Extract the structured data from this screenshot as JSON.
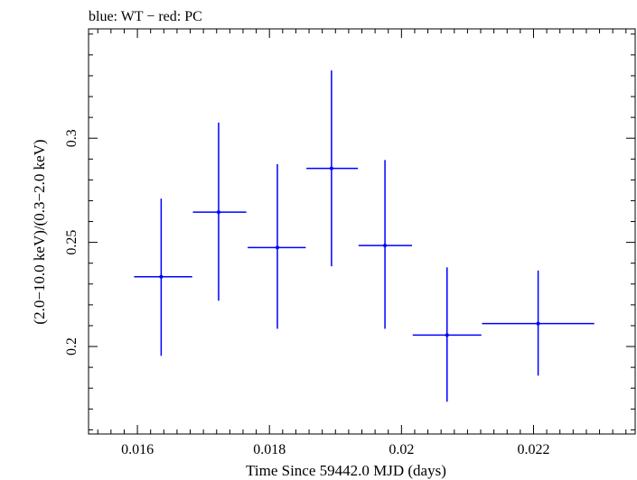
{
  "chart_data": {
    "type": "scatter",
    "title": "blue: WT − red: PC",
    "xlabel": "Time Since 59442.0 MJD (days)",
    "ylabel": "(2.0−10.0 keV)/(0.3−2.0 keV)",
    "xlim": [
      0.01526,
      0.02354
    ],
    "ylim": [
      0.158,
      0.3525
    ],
    "xticks": [
      0.016,
      0.018,
      0.02,
      0.022
    ],
    "xtick_labels": [
      "0.016",
      "0.018",
      "0.02",
      "0.022"
    ],
    "yticks": [
      0.2,
      0.25,
      0.3
    ],
    "ytick_labels": [
      "0.2",
      "0.25",
      "0.3"
    ],
    "grid": false,
    "series": [
      {
        "name": "WT",
        "color": "#0000ff",
        "points": [
          {
            "x": 0.01636,
            "xlo": 0.01595,
            "xhi": 0.01683,
            "y": 0.2335,
            "ylo": 0.1955,
            "yhi": 0.271
          },
          {
            "x": 0.01723,
            "xlo": 0.01684,
            "xhi": 0.01765,
            "y": 0.2645,
            "ylo": 0.222,
            "yhi": 0.3075
          },
          {
            "x": 0.01812,
            "xlo": 0.01767,
            "xhi": 0.01855,
            "y": 0.2475,
            "ylo": 0.2085,
            "yhi": 0.2875
          },
          {
            "x": 0.01894,
            "xlo": 0.01856,
            "xhi": 0.01934,
            "y": 0.2855,
            "ylo": 0.2385,
            "yhi": 0.3325
          },
          {
            "x": 0.01975,
            "xlo": 0.01935,
            "xhi": 0.02016,
            "y": 0.2485,
            "ylo": 0.2085,
            "yhi": 0.2895
          },
          {
            "x": 0.02069,
            "xlo": 0.02017,
            "xhi": 0.02121,
            "y": 0.2055,
            "ylo": 0.1735,
            "yhi": 0.238
          },
          {
            "x": 0.02207,
            "xlo": 0.02122,
            "xhi": 0.02292,
            "y": 0.211,
            "ylo": 0.186,
            "yhi": 0.2365
          }
        ]
      }
    ]
  }
}
